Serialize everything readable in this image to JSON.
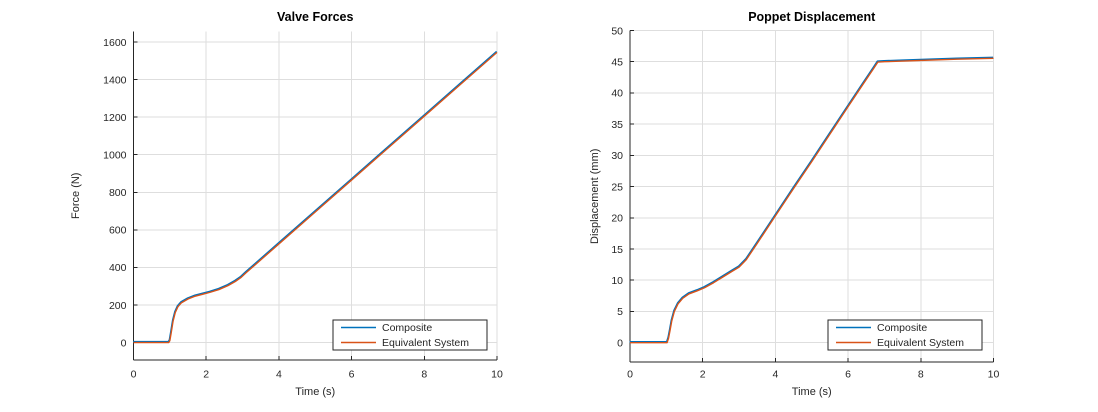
{
  "figure": {
    "background": "#ffffff"
  },
  "colors": {
    "composite": "#0072BD",
    "equivalent_system": "#D95319",
    "grid": "#DEDEDE",
    "axis": "#262626",
    "tick_text": "#262626",
    "title_text": "#000000",
    "legend_border": "#262626",
    "legend_background": "#FFFFFF"
  },
  "chart_data": [
    {
      "id": "valve-forces",
      "type": "line",
      "title": "Valve Forces",
      "xlabel": "Time (s)",
      "ylabel": "Force (N)",
      "xlim": [
        0,
        10
      ],
      "ylim": [
        -93,
        1656
      ],
      "xticks": [
        0,
        2,
        4,
        6,
        8,
        10
      ],
      "yticks": [
        0,
        200,
        400,
        600,
        800,
        1000,
        1200,
        1400,
        1600
      ],
      "grid": true,
      "legend_position": "southeast",
      "series": [
        {
          "name": "Composite",
          "color": "#0072BD",
          "x": [
            0,
            0.97,
            1.0,
            1.04,
            1.09,
            1.15,
            1.22,
            1.32,
            1.5,
            1.7,
            1.9,
            2.1,
            2.35,
            2.6,
            2.8,
            2.95,
            3.1,
            4,
            5,
            6,
            7,
            8,
            9,
            10
          ],
          "y": [
            0,
            0,
            10,
            55,
            115,
            160,
            190,
            212,
            232,
            247,
            257,
            267,
            282,
            303,
            325,
            345,
            372,
            525,
            695,
            865,
            1035,
            1205,
            1375,
            1545
          ]
        },
        {
          "name": "Equivalent System",
          "color": "#D95319",
          "x": [
            0,
            0.97,
            1.0,
            1.04,
            1.09,
            1.15,
            1.22,
            1.32,
            1.5,
            1.7,
            1.9,
            2.1,
            2.35,
            2.6,
            2.8,
            2.95,
            3.1,
            4,
            5,
            6,
            7,
            8,
            9,
            10
          ],
          "y": [
            0,
            0,
            10,
            55,
            115,
            160,
            190,
            212,
            232,
            247,
            257,
            267,
            282,
            303,
            325,
            345,
            372,
            525,
            695,
            865,
            1035,
            1205,
            1375,
            1545
          ]
        }
      ]
    },
    {
      "id": "poppet-displacement",
      "type": "line",
      "title": "Poppet Displacement",
      "xlabel": "Time (s)",
      "ylabel": "Displacement (mm)",
      "xlim": [
        0,
        10
      ],
      "ylim": [
        -3.1,
        50
      ],
      "xticks": [
        0,
        2,
        4,
        6,
        8,
        10
      ],
      "yticks": [
        0,
        5,
        10,
        15,
        20,
        25,
        30,
        35,
        40,
        45,
        50
      ],
      "grid": true,
      "legend_position": "southeast",
      "series": [
        {
          "name": "Composite",
          "color": "#0072BD",
          "x": [
            0,
            1.02,
            1.06,
            1.1,
            1.15,
            1.22,
            1.32,
            1.45,
            1.62,
            1.85,
            2.05,
            2.3,
            2.55,
            2.8,
            3.0,
            3.2,
            3.5,
            4.0,
            4.5,
            5.0,
            5.5,
            6.0,
            6.4,
            6.7,
            6.82,
            7.0,
            7.5,
            8.0,
            9.0,
            10
          ],
          "y": [
            0,
            0,
            0.7,
            1.9,
            3.5,
            5.0,
            6.2,
            7.1,
            7.8,
            8.3,
            8.8,
            9.6,
            10.5,
            11.4,
            12.1,
            13.3,
            15.9,
            20.3,
            24.7,
            29.0,
            33.4,
            37.8,
            41.3,
            43.9,
            44.95,
            45.0,
            45.1,
            45.2,
            45.4,
            45.55
          ]
        },
        {
          "name": "Equivalent System",
          "color": "#D95319",
          "x": [
            0,
            1.02,
            1.06,
            1.1,
            1.15,
            1.22,
            1.32,
            1.45,
            1.62,
            1.85,
            2.05,
            2.3,
            2.55,
            2.8,
            3.0,
            3.2,
            3.5,
            4.0,
            4.5,
            5.0,
            5.5,
            6.0,
            6.4,
            6.7,
            6.82,
            7.0,
            7.5,
            8.0,
            9.0,
            10
          ],
          "y": [
            0,
            0,
            0.7,
            1.9,
            3.5,
            5.0,
            6.2,
            7.1,
            7.8,
            8.3,
            8.8,
            9.6,
            10.5,
            11.4,
            12.1,
            13.3,
            15.9,
            20.3,
            24.7,
            29.0,
            33.4,
            37.8,
            41.3,
            43.9,
            44.95,
            45.0,
            45.1,
            45.2,
            45.4,
            45.55
          ]
        }
      ]
    }
  ]
}
